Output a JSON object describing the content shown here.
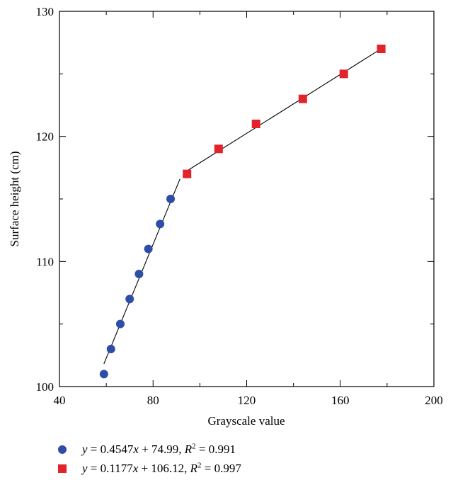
{
  "chart_data": {
    "type": "scatter",
    "xlabel": "Grayscale value",
    "ylabel": "Surface height (cm)",
    "xlim": [
      40,
      200
    ],
    "ylim": [
      100,
      130
    ],
    "x_ticks": [
      40,
      80,
      120,
      160,
      200
    ],
    "y_ticks": [
      100,
      110,
      120,
      130
    ],
    "x_tick_labels": [
      "40",
      "80",
      "120",
      "160",
      "200"
    ],
    "y_tick_labels": [
      "100",
      "110",
      "120",
      "130"
    ],
    "grid": false,
    "legend_position": "below",
    "series": [
      {
        "marker": "circle",
        "color": "#2e4da6",
        "points": [
          {
            "x": 59,
            "y": 101
          },
          {
            "x": 62,
            "y": 103
          },
          {
            "x": 66,
            "y": 105
          },
          {
            "x": 70,
            "y": 107
          },
          {
            "x": 74,
            "y": 109
          },
          {
            "x": 78,
            "y": 111
          },
          {
            "x": 83,
            "y": 113
          },
          {
            "x": 87.5,
            "y": 115
          }
        ],
        "fit": {
          "slope": 0.4547,
          "intercept": 74.99,
          "x_range": [
            59,
            91.5
          ]
        },
        "legend_label": {
          "y": "y",
          "mid": " = 0.4547",
          "x": "x",
          "rest": " + 74.99, ",
          "r": "R",
          "sup": "2",
          "tail": " = 0.991"
        }
      },
      {
        "marker": "square",
        "color": "#e3232a",
        "points": [
          {
            "x": 94.5,
            "y": 117
          },
          {
            "x": 108,
            "y": 119
          },
          {
            "x": 124,
            "y": 121
          },
          {
            "x": 144,
            "y": 123
          },
          {
            "x": 161.5,
            "y": 125
          },
          {
            "x": 177.5,
            "y": 127
          }
        ],
        "fit": {
          "slope": 0.1177,
          "intercept": 106.12,
          "x_range": [
            94.5,
            177.5
          ]
        },
        "legend_label": {
          "y": "y",
          "mid": " = 0.1177",
          "x": "x",
          "rest": " + 106.12, ",
          "r": "R",
          "sup": "2",
          "tail": " = 0.997"
        }
      }
    ]
  }
}
